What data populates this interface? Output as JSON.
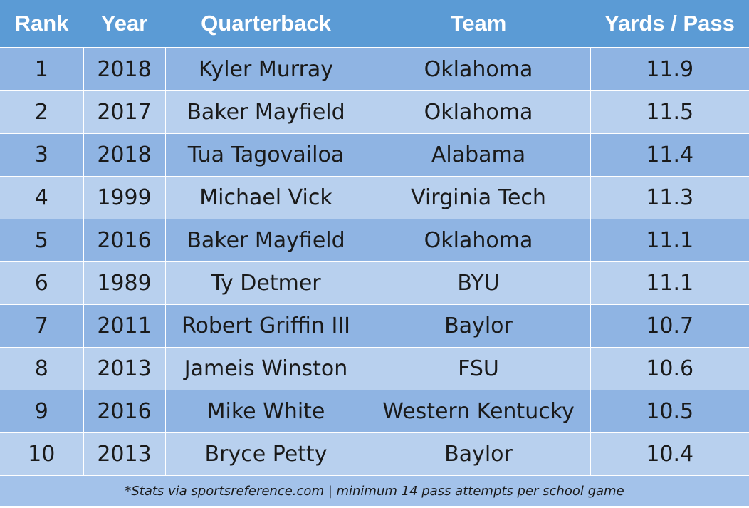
{
  "headers": {
    "rank": "Rank",
    "year": "Year",
    "quarterback": "Quarterback",
    "team": "Team",
    "yards_per_pass": "Yards / Pass"
  },
  "rows": [
    {
      "rank": "1",
      "year": "2018",
      "quarterback": "Kyler Murray",
      "team": "Oklahoma",
      "ypp": "11.9"
    },
    {
      "rank": "2",
      "year": "2017",
      "quarterback": "Baker Mayfield",
      "team": "Oklahoma",
      "ypp": "11.5"
    },
    {
      "rank": "3",
      "year": "2018",
      "quarterback": "Tua Tagovailoa",
      "team": "Alabama",
      "ypp": "11.4"
    },
    {
      "rank": "4",
      "year": "1999",
      "quarterback": "Michael Vick",
      "team": "Virginia Tech",
      "ypp": "11.3"
    },
    {
      "rank": "5",
      "year": "2016",
      "quarterback": "Baker Mayfield",
      "team": "Oklahoma",
      "ypp": "11.1"
    },
    {
      "rank": "6",
      "year": "1989",
      "quarterback": "Ty Detmer",
      "team": "BYU",
      "ypp": "11.1"
    },
    {
      "rank": "7",
      "year": "2011",
      "quarterback": "Robert Griffin III",
      "team": "Baylor",
      "ypp": "10.7"
    },
    {
      "rank": "8",
      "year": "2013",
      "quarterback": "Jameis Winston",
      "team": "FSU",
      "ypp": "10.6"
    },
    {
      "rank": "9",
      "year": "2016",
      "quarterback": "Mike White",
      "team": "Western Kentucky",
      "ypp": "10.5"
    },
    {
      "rank": "10",
      "year": "2013",
      "quarterback": "Bryce Petty",
      "team": "Baylor",
      "ypp": "10.4"
    }
  ],
  "footnote": "*Stats via sportsreference.com | minimum 14 pass attempts per school game",
  "colors": {
    "header": "#5B9BD5",
    "row_dark": "#8FB4E3",
    "row_light": "#B8D0EE",
    "footer": "#A3C2EA"
  }
}
